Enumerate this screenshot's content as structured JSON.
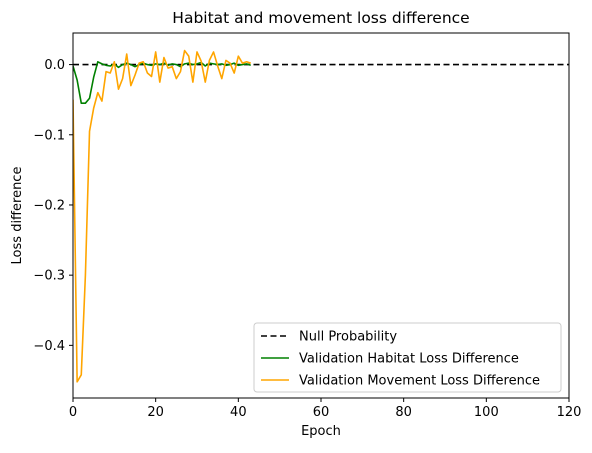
{
  "chart_data": {
    "type": "line",
    "title": "Habitat and movement loss difference",
    "xlabel": "Epoch",
    "ylabel": "Loss difference",
    "xlim": [
      0,
      120
    ],
    "ylim": [
      -0.475,
      0.045
    ],
    "xticks": [
      0,
      20,
      40,
      60,
      80,
      100,
      120
    ],
    "xtick_labels": [
      "0",
      "20",
      "40",
      "60",
      "80",
      "100",
      "120"
    ],
    "yticks": [
      0.0,
      -0.1,
      -0.2,
      -0.3,
      -0.4
    ],
    "ytick_labels": [
      "0.0",
      "−0.1",
      "−0.2",
      "−0.3",
      "−0.4"
    ],
    "grid": false,
    "legend_position": "lower-right",
    "reference_line": {
      "name": "Null Probability",
      "y": 0.0,
      "color": "#000000",
      "style": "dashed",
      "x_range": [
        0,
        120
      ]
    },
    "series": [
      {
        "name": "Validation Habitat Loss Difference",
        "color": "#008000",
        "x": [
          0,
          1,
          2,
          3,
          4,
          5,
          6,
          7,
          8,
          9,
          10,
          11,
          12,
          13,
          14,
          15,
          16,
          17,
          18,
          19,
          20,
          21,
          22,
          23,
          24,
          25,
          26,
          27,
          28,
          29,
          30,
          31,
          32,
          33,
          34,
          35,
          36,
          37,
          38,
          39,
          40,
          41,
          42,
          43
        ],
        "values": [
          -0.002,
          -0.022,
          -0.055,
          -0.055,
          -0.048,
          -0.018,
          0.004,
          0.001,
          -0.001,
          -0.002,
          0.001,
          -0.004,
          0.0,
          0.002,
          0.0,
          -0.003,
          0.0,
          0.002,
          0.0,
          -0.001,
          0.001,
          0.0,
          0.002,
          -0.001,
          0.001,
          0.0,
          -0.003,
          0.001,
          0.002,
          0.0,
          0.001,
          0.003,
          -0.002,
          0.002,
          0.001,
          0.0,
          0.001,
          -0.001,
          0.0,
          0.002,
          -0.001,
          0.0,
          0.001,
          -0.001
        ]
      },
      {
        "name": "Validation Movement Loss Difference",
        "color": "#FFA500",
        "x": [
          0,
          1,
          2,
          3,
          4,
          5,
          6,
          7,
          8,
          9,
          10,
          11,
          12,
          13,
          14,
          15,
          16,
          17,
          18,
          19,
          20,
          21,
          22,
          23,
          24,
          25,
          26,
          27,
          28,
          29,
          30,
          31,
          32,
          33,
          34,
          35,
          36,
          37,
          38,
          39,
          40,
          41,
          42,
          43
        ],
        "values": [
          -0.05,
          -0.452,
          -0.442,
          -0.3,
          -0.095,
          -0.062,
          -0.04,
          -0.052,
          -0.01,
          -0.012,
          0.004,
          -0.035,
          -0.02,
          0.015,
          -0.03,
          -0.015,
          0.002,
          0.004,
          -0.012,
          -0.017,
          0.018,
          -0.025,
          0.01,
          -0.005,
          -0.003,
          -0.02,
          -0.01,
          0.02,
          0.012,
          -0.025,
          0.018,
          0.005,
          -0.025,
          0.006,
          0.018,
          -0.002,
          -0.02,
          0.006,
          0.002,
          -0.012,
          0.012,
          0.002,
          0.004,
          0.002
        ]
      }
    ]
  }
}
